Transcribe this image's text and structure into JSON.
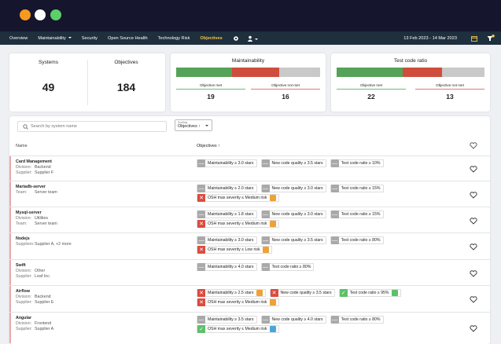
{
  "nav": {
    "items": [
      "Overview",
      "Maintainability",
      "Security",
      "Open Source Health",
      "Technology Risk",
      "Objectives"
    ],
    "active": 5,
    "dropdown": 1,
    "date": "13 Feb 2023 - 14 Mar 2023"
  },
  "summary": {
    "systems": {
      "label": "Systems",
      "value": 49
    },
    "objectives": {
      "label": "Objectives",
      "value": 184
    },
    "cards": [
      {
        "title": "Maintainability",
        "met": {
          "label": "Objective met",
          "value": 19
        },
        "notmet": {
          "label": "Objective not met",
          "value": 16
        }
      },
      {
        "title": "Test code ratio",
        "met": {
          "label": "Objective met",
          "value": 22
        },
        "notmet": {
          "label": "Objective not met",
          "value": 13
        }
      }
    ]
  },
  "toolbar": {
    "search": "Search by system name",
    "sorting_label": "Sorting",
    "sorting_value": "Objectives ↑"
  },
  "table": {
    "headers": [
      "Name",
      "Objectives ↑"
    ],
    "rows": [
      {
        "name": "Card Management",
        "fields": [
          [
            "Division:",
            "Backend"
          ],
          [
            "Supplier:",
            "Supplier F"
          ]
        ],
        "lines": [
          [
            {
              "status": "neutral",
              "text": "Maintainability ≥ 3.0 stars"
            },
            {
              "status": "neutral",
              "text": "New code quality ≥ 3.5 stars"
            },
            {
              "status": "neutral",
              "text": "Test code ratio ≥ 10%"
            }
          ]
        ]
      },
      {
        "name": "Mariadb-server",
        "fields": [
          [
            "Team:",
            "Server team"
          ]
        ],
        "lines": [
          [
            {
              "status": "neutral",
              "text": "Maintainability ≥ 2.0 stars"
            },
            {
              "status": "neutral",
              "text": "New code quality ≥ 3.0 stars"
            },
            {
              "status": "neutral",
              "text": "Test code ratio ≥ 15%"
            }
          ],
          [
            {
              "status": "fail",
              "text": "OSH max severity ≤ Medium risk",
              "badge": "orange"
            }
          ]
        ]
      },
      {
        "name": "Mysql-server",
        "fields": [
          [
            "Division:",
            "Utilities"
          ],
          [
            "Team:",
            "Server team"
          ]
        ],
        "lines": [
          [
            {
              "status": "neutral",
              "text": "Maintainability ≥ 1.8 stars"
            },
            {
              "status": "neutral",
              "text": "New code quality ≥ 3.0 stars"
            },
            {
              "status": "neutral",
              "text": "Test code ratio ≥ 15%"
            }
          ],
          [
            {
              "status": "fail",
              "text": "OSH max severity ≤ Medium risk",
              "badge": "orange"
            }
          ]
        ]
      },
      {
        "name": "Nodejs",
        "fields": [
          [
            "Suppliers:",
            "Supplier A, +2 more"
          ]
        ],
        "lines": [
          [
            {
              "status": "neutral",
              "text": "Maintainability ≥ 3.0 stars"
            },
            {
              "status": "neutral",
              "text": "New code quality ≥ 3.5 stars"
            },
            {
              "status": "neutral",
              "text": "Test code ratio ≥ 80%"
            }
          ],
          [
            {
              "status": "fail",
              "text": "OSH max severity ≤ Low risk",
              "badge": "orange"
            }
          ]
        ]
      },
      {
        "name": "Swift",
        "fields": [
          [
            "Division:",
            "Other"
          ],
          [
            "Supplier:",
            "Leaf Inc."
          ]
        ],
        "lines": [
          [
            {
              "status": "neutral",
              "text": "Maintainability ≥ 4.0 stars"
            },
            {
              "status": "neutral",
              "text": "Test code ratio ≥ 80%"
            }
          ]
        ]
      },
      {
        "name": "Airflow",
        "fields": [
          [
            "Division:",
            "Backend"
          ],
          [
            "Supplier:",
            "Supplier E"
          ]
        ],
        "lines": [
          [
            {
              "status": "fail",
              "text": "Maintainability ≥ 2.5 stars",
              "badge": "orange"
            },
            {
              "status": "fail",
              "text": "New code quality ≥ 3.5 stars"
            },
            {
              "status": "pass",
              "text": "Test code ratio ≥ 95%",
              "badge": "green"
            }
          ],
          [
            {
              "status": "fail",
              "text": "OSH max severity ≤ Medium risk",
              "badge": "orange"
            }
          ]
        ]
      },
      {
        "name": "Angular",
        "fields": [
          [
            "Division:",
            "Frontend"
          ],
          [
            "Supplier:",
            "Supplier A"
          ]
        ],
        "lines": [
          [
            {
              "status": "neutral",
              "text": "Maintainability ≥ 3.5 stars"
            },
            {
              "status": "neutral",
              "text": "New code quality ≥ 4.0 stars"
            },
            {
              "status": "neutral",
              "text": "Test code ratio ≥ 80%"
            }
          ],
          [
            {
              "status": "pass",
              "text": "OSH max severity ≤ Medium risk",
              "badge": "blue"
            }
          ]
        ]
      }
    ]
  }
}
